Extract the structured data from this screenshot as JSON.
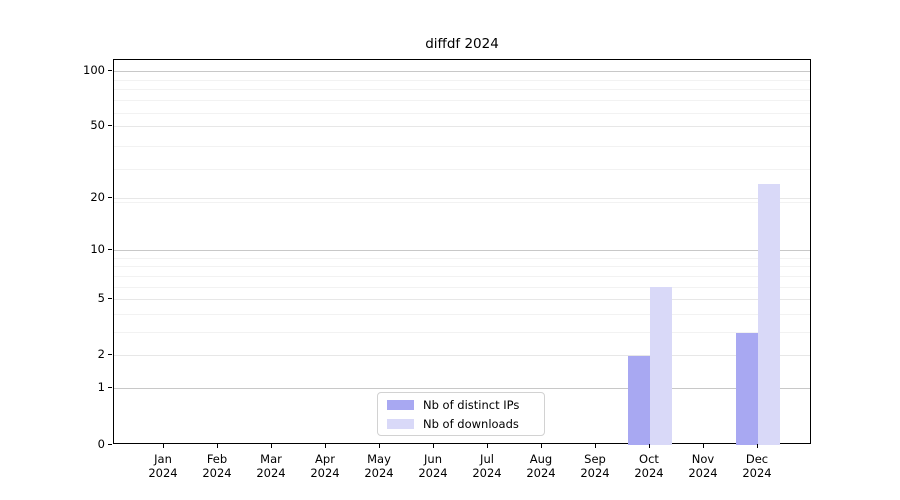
{
  "title": "diffdf 2024",
  "colors": {
    "background": "#ffffff",
    "ips": "#a8a8f2",
    "downloads": "#d9d9f8",
    "grid_major": "#c8c8c8",
    "grid_mid": "#e7e7e7",
    "grid_minor": "#f2f2f2",
    "spine": "#000000",
    "legend_border": "#d2d2d2"
  },
  "legend": {
    "items": [
      {
        "label": "Nb of distinct IPs",
        "color_key": "ips"
      },
      {
        "label": "Nb of downloads",
        "color_key": "downloads"
      }
    ]
  },
  "chart_data": {
    "type": "bar",
    "title": "diffdf 2024",
    "categories": [
      "Jan",
      "Feb",
      "Mar",
      "Apr",
      "May",
      "Jun",
      "Jul",
      "Aug",
      "Sep",
      "Oct",
      "Nov",
      "Dec"
    ],
    "year_label": "2024",
    "series": [
      {
        "name": "Nb of distinct IPs",
        "color_key": "ips",
        "values": [
          0,
          0,
          0,
          0,
          0,
          0,
          0,
          0,
          0,
          2,
          0,
          3
        ]
      },
      {
        "name": "Nb of downloads",
        "color_key": "downloads",
        "values": [
          0,
          0,
          0,
          0,
          0,
          0,
          0,
          0,
          0,
          6,
          0,
          24
        ]
      }
    ],
    "xlabel": "",
    "ylabel": "",
    "y_scale": "log(value+1)",
    "y_ticks": [
      0,
      1,
      2,
      5,
      10,
      20,
      50,
      100
    ],
    "y_major_emphasis": [
      1,
      10,
      100
    ],
    "y_minor_ticks": [
      3,
      4,
      6,
      7,
      8,
      9,
      19,
      29,
      39,
      59,
      69,
      79,
      89
    ],
    "ylim": [
      0,
      115
    ],
    "grid": true,
    "legend_position": "lower center"
  }
}
